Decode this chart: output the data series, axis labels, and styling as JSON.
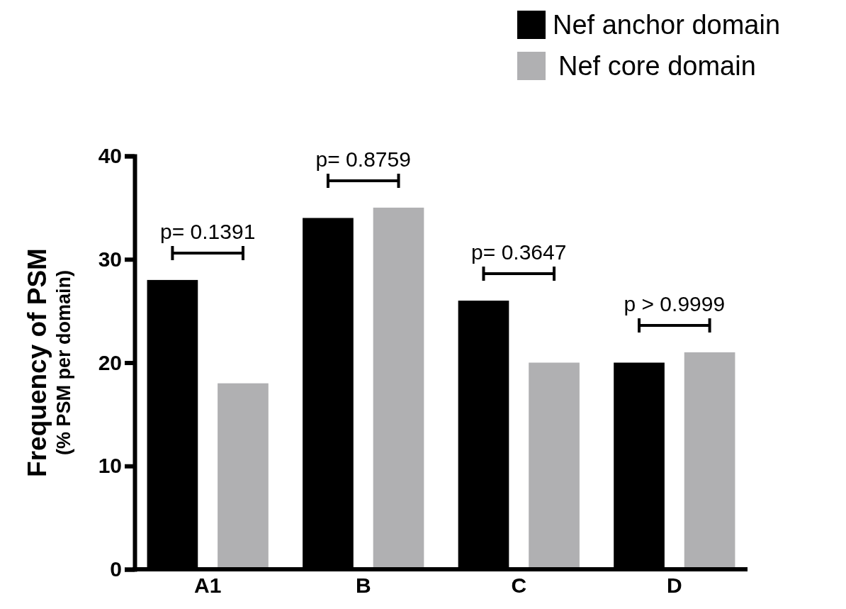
{
  "chart_data": {
    "type": "bar",
    "ylabel": "Frequency of PSM\n(% PSM per domain)",
    "categories": [
      "A1",
      "B",
      "C",
      "D"
    ],
    "series": [
      {
        "name": "Nef anchor domain",
        "color": "#000000",
        "values": [
          28,
          34,
          26,
          20
        ]
      },
      {
        "name": "Nef core domain",
        "color": "#b0b0b2",
        "values": [
          18,
          35,
          20,
          21
        ]
      }
    ],
    "ylim": [
      0,
      40
    ],
    "yticks": [
      0,
      10,
      20,
      30,
      40
    ],
    "grid": false,
    "legend": "top right",
    "annotations": [
      "p= 0.1391",
      "p= 0.8759",
      "p= 0.3647",
      "p > 0.9999"
    ]
  }
}
